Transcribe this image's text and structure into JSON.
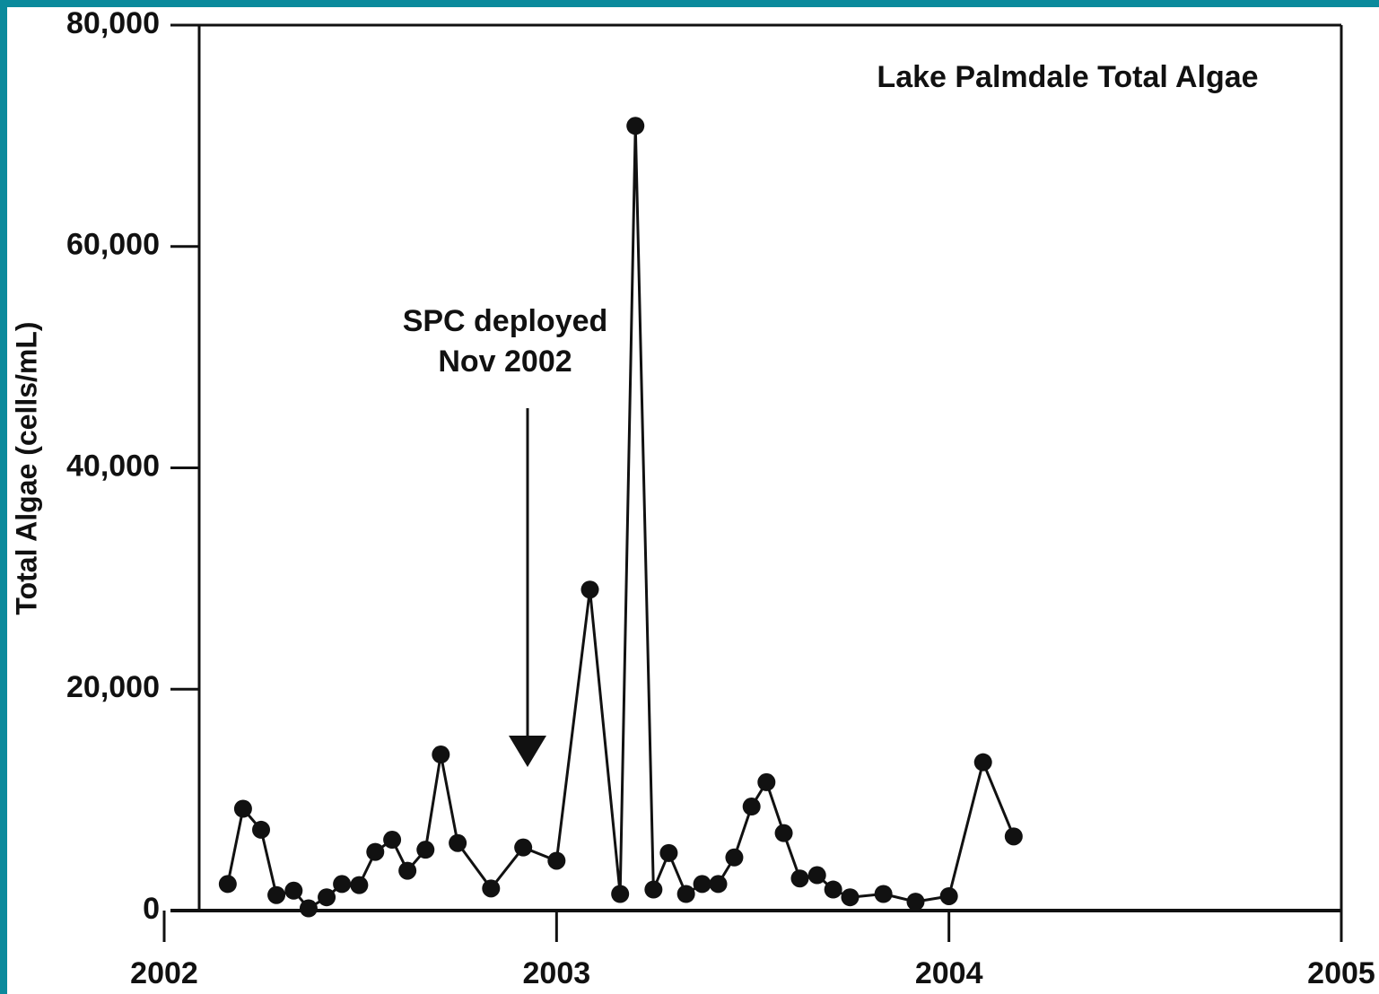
{
  "chart_data": {
    "type": "line",
    "title": "Lake Palmdale Total Algae",
    "ylabel": "Total Algae (cells/mL)",
    "annotation": [
      "SPC deployed",
      "Nov 2002"
    ],
    "x": [
      2002.162,
      2002.201,
      2002.247,
      2002.286,
      2002.33,
      2002.368,
      2002.414,
      2002.453,
      2002.497,
      2002.538,
      2002.581,
      2002.62,
      2002.666,
      2002.705,
      2002.748,
      2002.833,
      2002.915,
      2003.0,
      2003.085,
      2003.162,
      2003.201,
      2003.247,
      2003.286,
      2003.33,
      2003.371,
      2003.412,
      2003.453,
      2003.497,
      2003.535,
      2003.579,
      2003.62,
      2003.664,
      2003.705,
      2003.748,
      2003.833,
      2003.915,
      2004.0,
      2004.087,
      2004.165
    ],
    "series": [
      {
        "name": "Total Algae",
        "color": "#111111",
        "values": [
          2400,
          9200,
          7300,
          1400,
          1800,
          200,
          1200,
          2400,
          2300,
          5300,
          6400,
          3600,
          5500,
          14100,
          6100,
          2000,
          5700,
          4500,
          29000,
          1500,
          70900,
          1900,
          5200,
          1500,
          2400,
          2400,
          4800,
          9400,
          11600,
          7000,
          2900,
          3200,
          1900,
          1200,
          1500,
          800,
          1300,
          13400,
          6700
        ]
      }
    ],
    "xlim": [
      2002,
      2005
    ],
    "xticks": [
      2002,
      2003,
      2004,
      2005
    ],
    "ylim": [
      0,
      80000
    ],
    "yticks": [
      0,
      {
        "value": 20000,
        "label": "20,000"
      },
      {
        "value": 40000,
        "label": "40,000"
      },
      {
        "value": 60000,
        "label": "60,000"
      },
      {
        "value": 80000,
        "label": "80,000"
      }
    ]
  }
}
